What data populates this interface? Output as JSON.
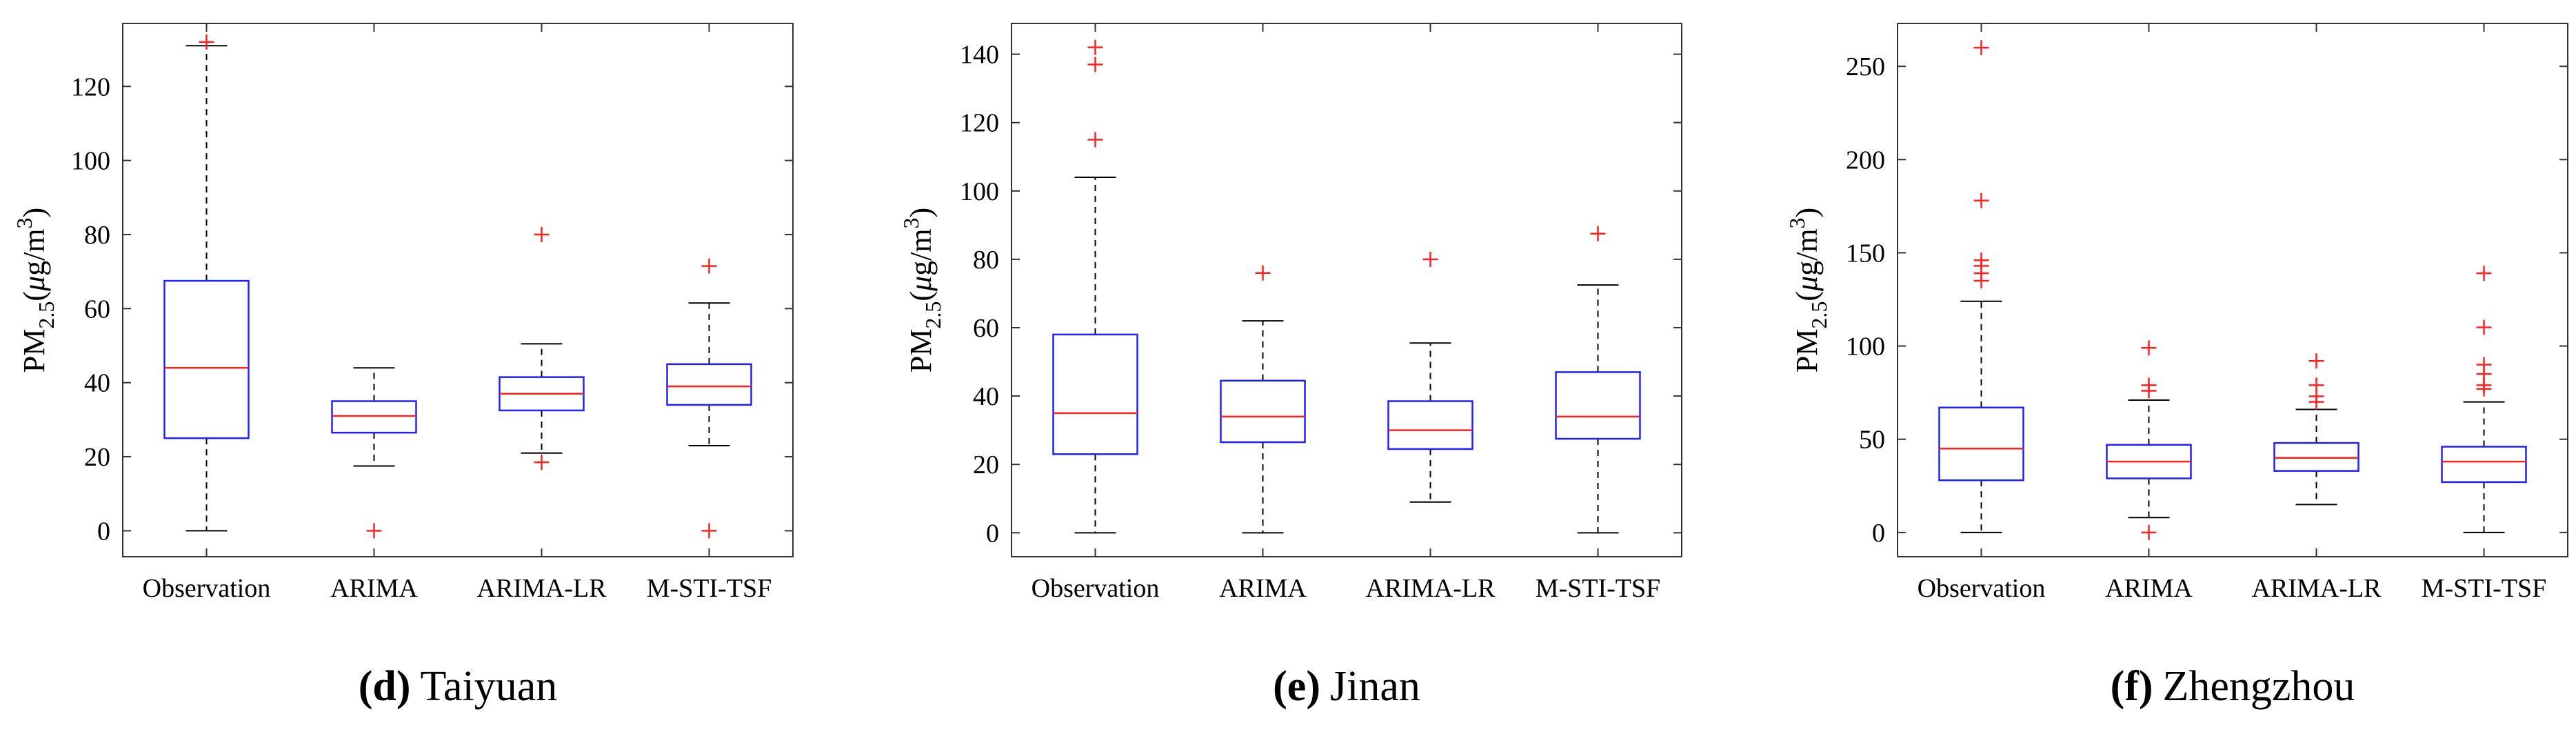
{
  "chart_data": [
    {
      "type": "boxplot",
      "caption_letter": "(d)",
      "caption_city": "Taiyuan",
      "ylabel": "PM",
      "ylabel_sub": "2.5",
      "ylabel_unit_open": "(",
      "ylabel_mu": "μ",
      "ylabel_unit": "g/m",
      "ylabel_sup": "3",
      "ylabel_unit_close": ")",
      "ylim": [
        -7,
        137
      ],
      "yticks": [
        0,
        20,
        40,
        60,
        80,
        100,
        120
      ],
      "categories": [
        "Observation",
        "ARIMA",
        "ARIMA-LR",
        "M-STI-TSF"
      ],
      "boxes": [
        {
          "whisker_low": 0,
          "q1": 25,
          "median": 44,
          "q3": 67.5,
          "whisker_high": 131,
          "outliers": [
            132
          ]
        },
        {
          "whisker_low": 17.5,
          "q1": 26.5,
          "median": 31,
          "q3": 35,
          "whisker_high": 44,
          "outliers": [
            0
          ]
        },
        {
          "whisker_low": 21,
          "q1": 32.5,
          "median": 37,
          "q3": 41.5,
          "whisker_high": 50.5,
          "outliers": [
            18.5,
            80
          ]
        },
        {
          "whisker_low": 23,
          "q1": 34,
          "median": 39,
          "q3": 45,
          "whisker_high": 61.5,
          "outliers": [
            0,
            71.5
          ]
        }
      ]
    },
    {
      "type": "boxplot",
      "caption_letter": "(e)",
      "caption_city": "Jinan",
      "ylabel": "PM",
      "ylabel_sub": "2.5",
      "ylabel_unit_open": "(",
      "ylabel_mu": "μ",
      "ylabel_unit": "g/m",
      "ylabel_sup": "3",
      "ylabel_unit_close": ")",
      "ylim": [
        -7,
        149
      ],
      "yticks": [
        0,
        20,
        40,
        60,
        80,
        100,
        120,
        140
      ],
      "categories": [
        "Observation",
        "ARIMA",
        "ARIMA-LR",
        "M-STI-TSF"
      ],
      "boxes": [
        {
          "whisker_low": 0,
          "q1": 23,
          "median": 35,
          "q3": 58,
          "whisker_high": 104,
          "outliers": [
            115,
            137,
            142
          ]
        },
        {
          "whisker_low": 0,
          "q1": 26.5,
          "median": 34,
          "q3": 44.5,
          "whisker_high": 62,
          "outliers": [
            76
          ]
        },
        {
          "whisker_low": 9,
          "q1": 24.5,
          "median": 30,
          "q3": 38.5,
          "whisker_high": 55.5,
          "outliers": [
            80
          ]
        },
        {
          "whisker_low": 0,
          "q1": 27.5,
          "median": 34,
          "q3": 47,
          "whisker_high": 72.5,
          "outliers": [
            87.5
          ]
        }
      ]
    },
    {
      "type": "boxplot",
      "caption_letter": "(f)",
      "caption_city": "Zhengzhou",
      "ylabel": "PM",
      "ylabel_sub": "2.5",
      "ylabel_unit_open": "(",
      "ylabel_mu": "μ",
      "ylabel_unit": "g/m",
      "ylabel_sup": "3",
      "ylabel_unit_close": ")",
      "ylim": [
        -13,
        273
      ],
      "yticks": [
        0,
        50,
        100,
        150,
        200,
        250
      ],
      "categories": [
        "Observation",
        "ARIMA",
        "ARIMA-LR",
        "M-STI-TSF"
      ],
      "boxes": [
        {
          "whisker_low": 0,
          "q1": 28,
          "median": 45,
          "q3": 67,
          "whisker_high": 124,
          "outliers": [
            135,
            139,
            143,
            146,
            178,
            260
          ]
        },
        {
          "whisker_low": 8,
          "q1": 29,
          "median": 38,
          "q3": 47,
          "whisker_high": 71,
          "outliers": [
            0,
            76,
            79,
            99
          ]
        },
        {
          "whisker_low": 15,
          "q1": 33,
          "median": 40,
          "q3": 48,
          "whisker_high": 66,
          "outliers": [
            70,
            73,
            79,
            92
          ]
        },
        {
          "whisker_low": 0,
          "q1": 27,
          "median": 38,
          "q3": 46,
          "whisker_high": 70,
          "outliers": [
            77,
            79,
            85,
            90,
            110,
            139
          ]
        }
      ]
    }
  ]
}
